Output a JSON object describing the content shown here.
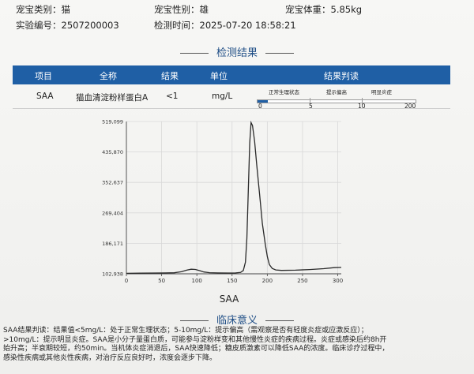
{
  "header": {
    "pet_type_label": "宠宝类别：",
    "pet_type_value": "猫",
    "pet_sex_label": "宠宝性别：",
    "pet_sex_value": "雄",
    "pet_weight_label": "宠宝体重：",
    "pet_weight_value": "5.85kg",
    "sample_id_label": "实验编号：",
    "sample_id_value": "2507200003",
    "test_time_label": "检测时间：",
    "test_time_value": "2025-07-20 18:58:21"
  },
  "results_section": {
    "title": "检测结果",
    "columns": [
      "项目",
      "全称",
      "结果",
      "单位",
      "结果判读"
    ],
    "row": {
      "item": "SAA",
      "full_name": "猫血清淀粉样蛋白A",
      "result": "<1",
      "unit": "mg/L"
    },
    "scale": {
      "labels": [
        "正常生理状态",
        "提示偏高",
        "明显炎症"
      ],
      "ticks": [
        "0",
        "5",
        "10",
        "200"
      ],
      "indicator_value": 1
    }
  },
  "chart_data": {
    "type": "line",
    "xlabel": "SAA",
    "ylabel": "",
    "x_ticks": [
      0,
      50,
      100,
      150,
      200,
      250,
      300
    ],
    "y_ticks": [
      "102,938",
      "186,171",
      "269,404",
      "352,637",
      "435,870",
      "519,099"
    ],
    "xlim": [
      0,
      305
    ],
    "ylim": [
      102938,
      519099
    ],
    "series": [
      {
        "points": [
          [
            0,
            104200
          ],
          [
            20,
            104600
          ],
          [
            40,
            105000
          ],
          [
            55,
            105300
          ],
          [
            68,
            105800
          ],
          [
            78,
            108500
          ],
          [
            86,
            113000
          ],
          [
            92,
            115500
          ],
          [
            98,
            114800
          ],
          [
            104,
            111500
          ],
          [
            110,
            107800
          ],
          [
            118,
            105900
          ],
          [
            130,
            105300
          ],
          [
            145,
            105200
          ],
          [
            155,
            105400
          ],
          [
            162,
            106500
          ],
          [
            166,
            112000
          ],
          [
            169,
            135000
          ],
          [
            171,
            200000
          ],
          [
            173,
            330000
          ],
          [
            175,
            460000
          ],
          [
            177,
            516000
          ],
          [
            179,
            508000
          ],
          [
            182,
            465000
          ],
          [
            185,
            400000
          ],
          [
            189,
            320000
          ],
          [
            193,
            240000
          ],
          [
            197,
            185000
          ],
          [
            200,
            150000
          ],
          [
            203,
            128000
          ],
          [
            207,
            117500
          ],
          [
            212,
            113500
          ],
          [
            220,
            112200
          ],
          [
            240,
            112800
          ],
          [
            260,
            114500
          ],
          [
            280,
            117000
          ],
          [
            295,
            119800
          ],
          [
            305,
            120500
          ]
        ]
      }
    ]
  },
  "clinical": {
    "title": "临床意义",
    "text_line1": "SAA结果判读：结果值<5mg/L：处于正常生理状态；5-10mg/L：提示偏高（需观察是否有轻度炎症或应激反应）；",
    "text_line2": ">10mg/L：提示明显炎症。SAA是小分子量蛋白质，可能参与淀粉样变和其他慢性炎症的疾病过程。炎症或感染后约8h开",
    "text_line3": "始升高；半衰期较短，约50min。当机体炎症消退后，SAA快速降低；糖皮质激素可以降低SAA的浓度。临床诊疗过程中，",
    "text_line4": "感染性疾病或其他炎性疾病，对治疗反应良好时，浓度会逐步下降。"
  }
}
